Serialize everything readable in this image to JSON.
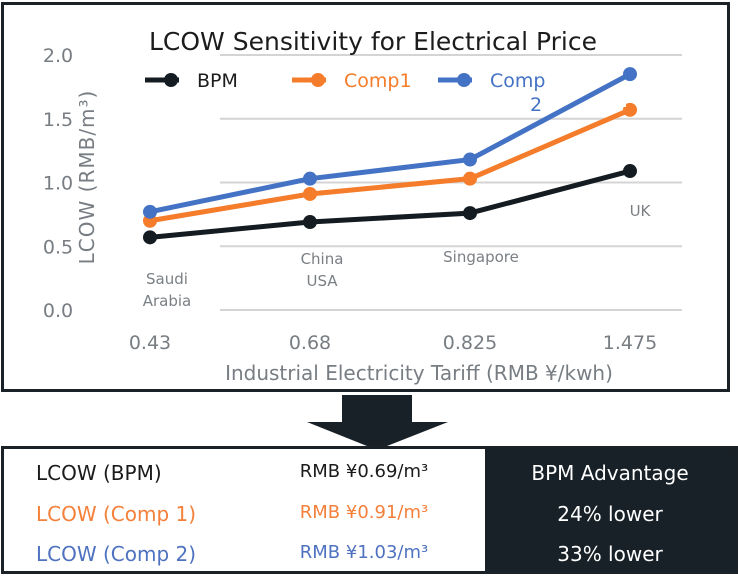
{
  "chart_data": {
    "type": "line",
    "title": "LCOW Sensitivity for Electrical Price",
    "xlabel": "Industrial Electricity Tariff (RMB ¥/kwh)",
    "ylabel": "LCOW (RMB/m³)",
    "categories": [
      "0.43",
      "0.68",
      "0.825",
      "1.475"
    ],
    "x_annotations": [
      {
        "category": "0.43",
        "lines": [
          "Saudi",
          "Arabia"
        ]
      },
      {
        "category": "0.68",
        "lines": [
          "China",
          "USA"
        ]
      },
      {
        "category": "0.825",
        "lines": [
          "Singapore"
        ]
      },
      {
        "category": "1.475",
        "lines": [
          "UK"
        ]
      }
    ],
    "y_ticks": [
      "0.0",
      "0.5",
      "1.0",
      "1.5",
      "2.0"
    ],
    "ylim": [
      0,
      2.0
    ],
    "grid": true,
    "legend_position": "top",
    "series": [
      {
        "name": "BPM",
        "legend_lines": [
          "BPM"
        ],
        "color": "#141c22",
        "values": [
          0.57,
          0.69,
          0.76,
          1.09
        ]
      },
      {
        "name": "Comp1",
        "legend_lines": [
          "Comp1"
        ],
        "color": "#f47c2a",
        "values": [
          0.7,
          0.91,
          1.03,
          1.57
        ]
      },
      {
        "name": "Comp 2",
        "legend_lines": [
          "Comp",
          "2"
        ],
        "color": "#4472c4",
        "values": [
          0.77,
          1.03,
          1.18,
          1.85
        ]
      }
    ]
  },
  "summary": {
    "rows": [
      {
        "label": "LCOW (BPM)",
        "value": "RMB ¥0.69/m³",
        "color": "#1b1b1b"
      },
      {
        "label": "LCOW (Comp 1)",
        "value": "RMB ¥0.91/m³",
        "color": "#f4803a"
      },
      {
        "label": "LCOW (Comp 2)",
        "value": "RMB ¥1.03/m³",
        "color": "#4f72c0"
      }
    ],
    "advantage_header": "BPM Advantage",
    "advantages": [
      "24% lower",
      "33% lower"
    ]
  }
}
